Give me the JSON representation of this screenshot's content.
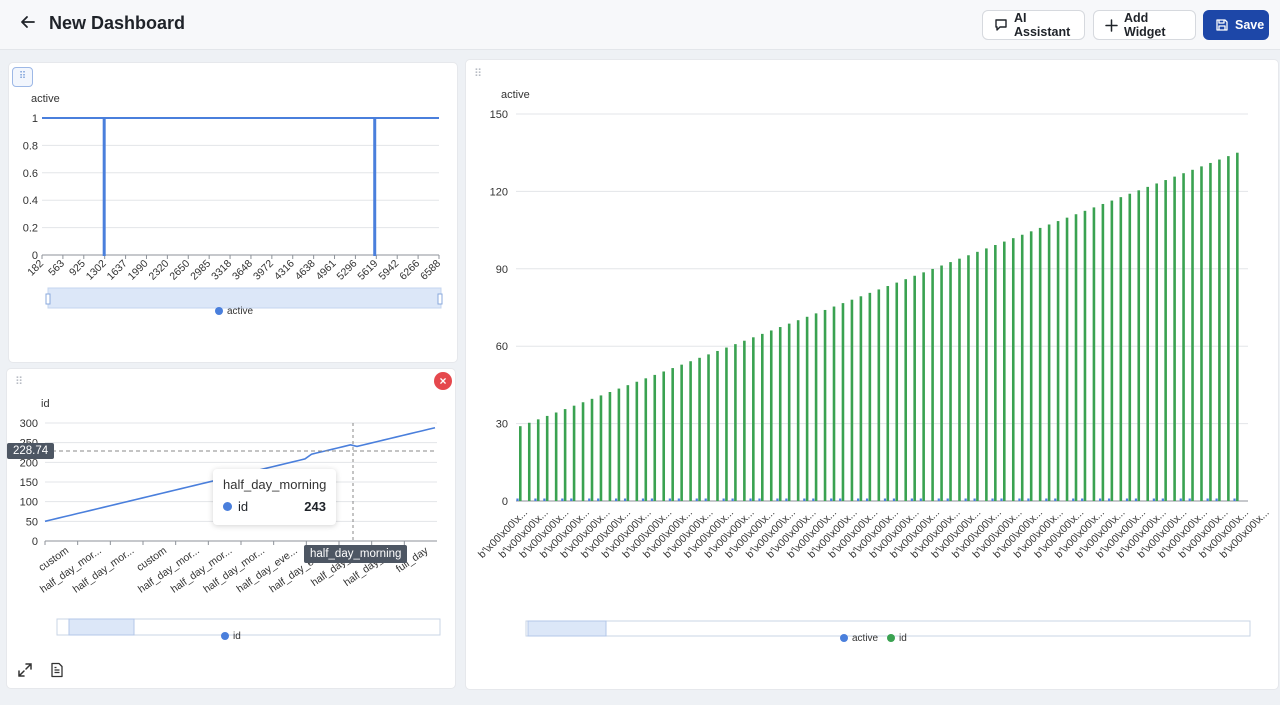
{
  "header": {
    "title": "New Dashboard",
    "ai_label": "AI Assistant",
    "add_label": "Add Widget",
    "save_label": "Save"
  },
  "colors": {
    "blue": "#4a7fdc",
    "green": "#3aa251",
    "primary": "#1d47a8",
    "danger": "#e5484d"
  },
  "icons": [
    "back-arrow-icon",
    "chat-icon",
    "plus-icon",
    "save-icon",
    "drag-handle-icon",
    "close-icon",
    "expand-icon",
    "document-icon"
  ],
  "widget1": {
    "tooltip": null,
    "chart_data": {
      "type": "line",
      "ylabel": "active",
      "ylim": [
        0,
        1
      ],
      "yticks": [
        "0",
        "0.2",
        "0.4",
        "0.6",
        "0.8",
        "1"
      ],
      "categories": [
        "182",
        "563",
        "925",
        "1302",
        "1637",
        "1990",
        "2320",
        "2650",
        "2985",
        "3318",
        "3648",
        "3972",
        "4316",
        "4638",
        "4961",
        "5296",
        "5619",
        "5942",
        "6266",
        "6588"
      ],
      "series": [
        {
          "name": "active",
          "note": "value 1 with drops to 0 near 1302 and 5619"
        }
      ],
      "legend": [
        "active"
      ],
      "legend_position": "bottom",
      "grid": true
    }
  },
  "widget2": {
    "tooltip": {
      "title": "half_day_morning",
      "series": "id",
      "value": "243"
    },
    "crosshair_y_label": "228.74",
    "crosshair_x_label": "half_day_morning",
    "chart_data": {
      "type": "line",
      "ylabel": "id",
      "ylim": [
        0,
        300
      ],
      "yticks": [
        "0",
        "50",
        "100",
        "150",
        "200",
        "250",
        "300"
      ],
      "categories": [
        "custom",
        "half_day_mor...",
        "half_day_mor...",
        "custom",
        "half_day_mor...",
        "half_day_mor...",
        "half_day_mor...",
        "half_day_eve...",
        "half_day_eve...",
        "half_day_e...",
        "half_day_e...",
        "full_day"
      ],
      "series": [
        {
          "name": "id",
          "start": 50,
          "end": 288
        }
      ],
      "legend": [
        "id"
      ],
      "legend_position": "bottom",
      "grid": true
    }
  },
  "widget3": {
    "chart_data": {
      "type": "bar",
      "ylabel": "active",
      "ylim": [
        0,
        150
      ],
      "yticks": [
        "0",
        "30",
        "60",
        "90",
        "120",
        "150"
      ],
      "category_label": "b'\\x00\\x00\\x...",
      "series": [
        {
          "name": "active",
          "values_note": "0 or 1 for every category"
        },
        {
          "name": "id",
          "start": 29,
          "end": 135,
          "count": 81
        }
      ],
      "legend": [
        "active",
        "id"
      ],
      "legend_position": "bottom",
      "grid": true
    }
  }
}
